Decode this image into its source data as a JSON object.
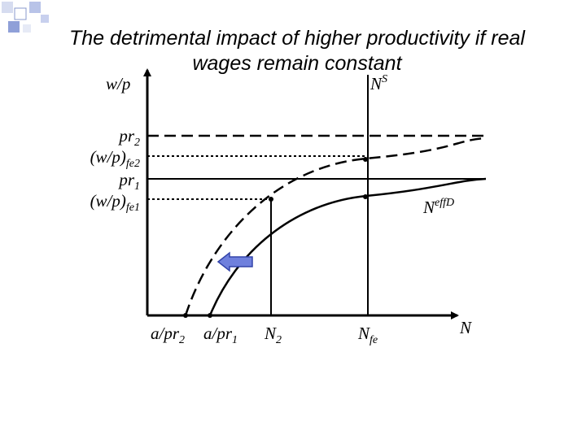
{
  "title": "The detrimental impact of higher productivity if real wages remain constant",
  "y_axis_label": "w/p",
  "x_axis_label": "N",
  "curve_labels": {
    "supply": {
      "base": "N",
      "sup": "S"
    },
    "demand": {
      "base": "N",
      "sup": "effD"
    }
  },
  "y_labels": [
    {
      "base": "pr",
      "sub": "2"
    },
    {
      "base": "(w/p)",
      "sub": "fe2"
    },
    {
      "base": "pr",
      "sub": "1"
    },
    {
      "base": "(w/p)",
      "sub": "fe1"
    }
  ],
  "x_labels": [
    {
      "base": "a/pr",
      "sub": "2"
    },
    {
      "base": "a/pr",
      "sub": "1"
    },
    {
      "base": "N",
      "sub": "2"
    },
    {
      "base": "N",
      "sub": "fe"
    }
  ]
}
